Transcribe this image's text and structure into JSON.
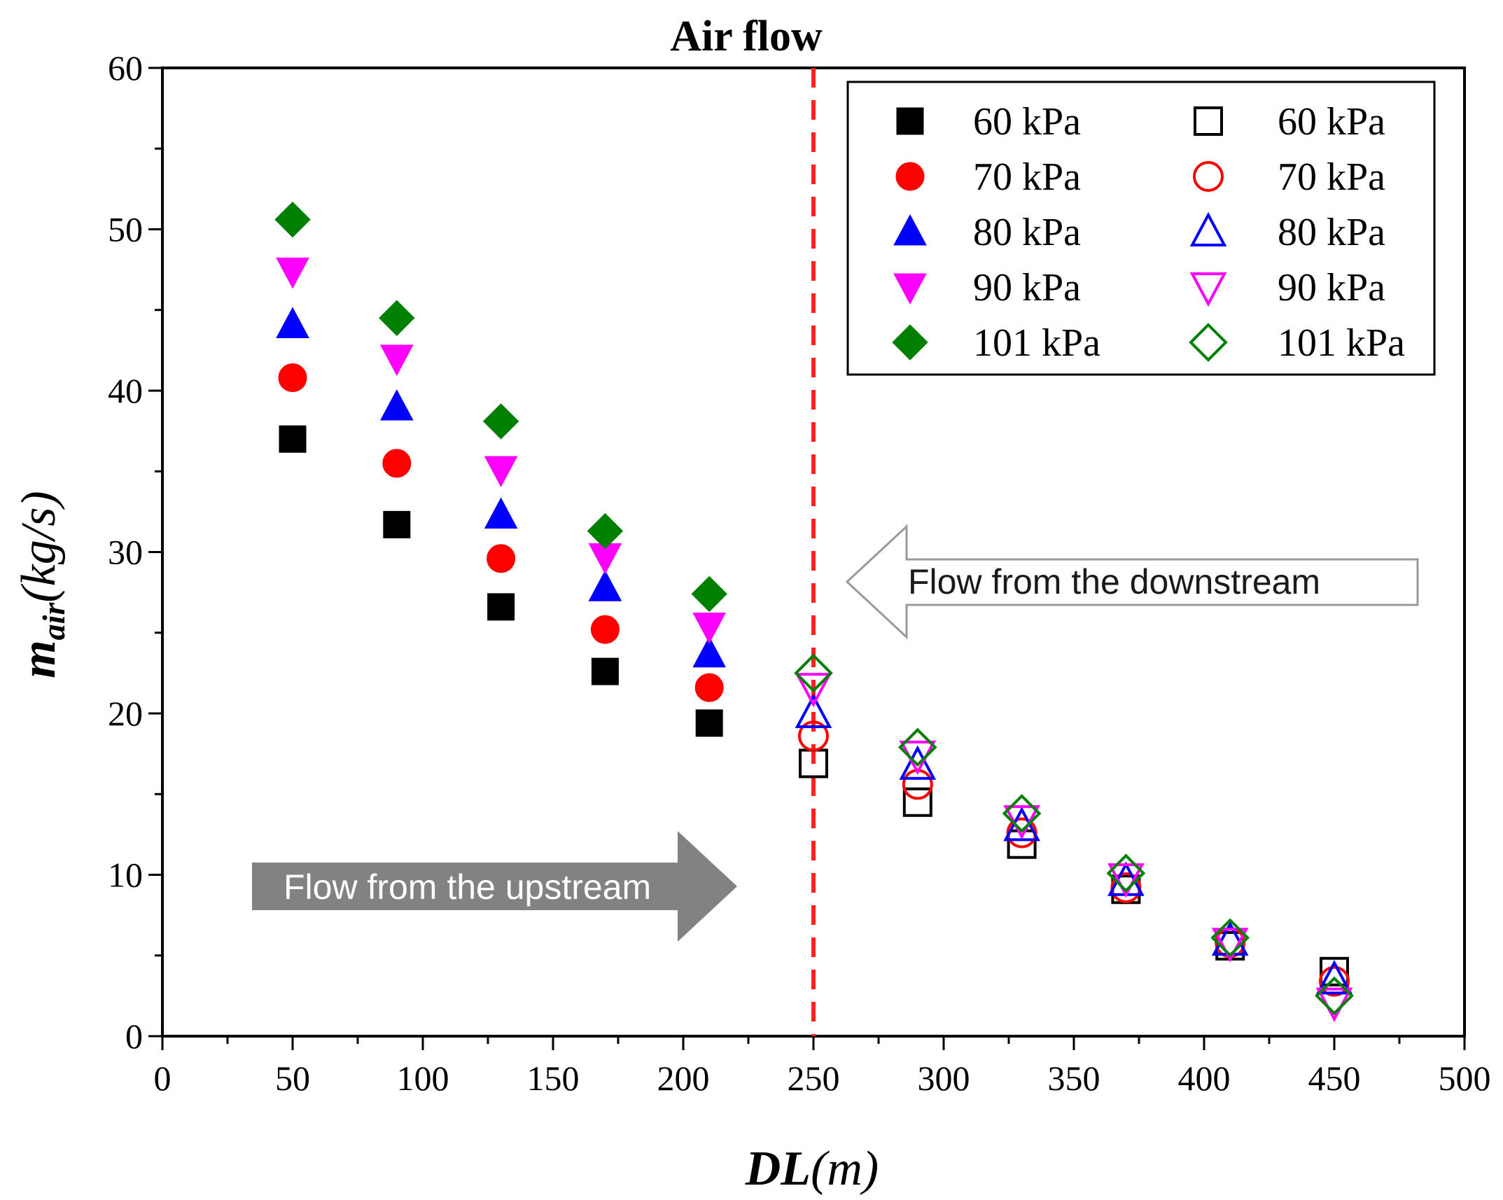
{
  "chart_data": {
    "type": "scatter",
    "title": "Air flow",
    "xlabel": {
      "main": "DL",
      "unit": "(m)"
    },
    "ylabel": {
      "main": "m",
      "sub": "air",
      "unit": "(kg/s)"
    },
    "xlim": [
      0,
      500
    ],
    "ylim": [
      0,
      60
    ],
    "xticks": [
      0,
      50,
      100,
      150,
      200,
      250,
      300,
      350,
      400,
      450,
      500
    ],
    "yticks": [
      0,
      10,
      20,
      30,
      40,
      50,
      60
    ],
    "grid": false,
    "legend_position": "top-right",
    "vline": {
      "x": 250,
      "color": "#ff2020",
      "style": "dashed"
    },
    "annotations": [
      {
        "text": "Flow from the upstream",
        "direction": "right",
        "style": "filled-gray-arrow"
      },
      {
        "text": "Flow from the downstream",
        "direction": "left",
        "style": "outline-arrow"
      }
    ],
    "series": [
      {
        "name": "60 kPa",
        "marker": "square",
        "filled": true,
        "color": "#000000",
        "x": [
          50,
          90,
          130,
          170,
          210
        ],
        "values": [
          37.0,
          31.7,
          26.6,
          22.6,
          19.4
        ]
      },
      {
        "name": "70 kPa",
        "marker": "circle",
        "filled": true,
        "color": "#ff0000",
        "x": [
          50,
          90,
          130,
          170,
          210
        ],
        "values": [
          40.8,
          35.5,
          29.6,
          25.2,
          21.6
        ]
      },
      {
        "name": "80 kPa",
        "marker": "triangle-up",
        "filled": true,
        "color": "#0000ff",
        "x": [
          50,
          90,
          130,
          170,
          210
        ],
        "values": [
          44.1,
          39.0,
          32.3,
          27.8,
          23.7
        ]
      },
      {
        "name": "90 kPa",
        "marker": "triangle-down",
        "filled": true,
        "color": "#ff00ff",
        "x": [
          50,
          90,
          130,
          170,
          210
        ],
        "values": [
          47.4,
          42.0,
          35.1,
          29.7,
          25.4
        ]
      },
      {
        "name": "101 kPa",
        "marker": "diamond",
        "filled": true,
        "color": "#008000",
        "x": [
          50,
          90,
          130,
          170,
          210
        ],
        "values": [
          50.6,
          44.5,
          38.1,
          31.3,
          27.4
        ]
      },
      {
        "name": "60 kPa",
        "marker": "square",
        "filled": false,
        "color": "#000000",
        "x": [
          250,
          290,
          330,
          370,
          410,
          450
        ],
        "values": [
          16.9,
          14.5,
          11.9,
          9.1,
          5.6,
          4.0
        ]
      },
      {
        "name": "70 kPa",
        "marker": "circle",
        "filled": false,
        "color": "#ff0000",
        "x": [
          250,
          290,
          330,
          370,
          410,
          450
        ],
        "values": [
          18.6,
          15.6,
          12.6,
          9.2,
          5.8,
          3.4
        ]
      },
      {
        "name": "80 kPa",
        "marker": "triangle-up",
        "filled": false,
        "color": "#0000ff",
        "x": [
          250,
          290,
          330,
          370,
          410,
          450
        ],
        "values": [
          20.0,
          16.8,
          13.0,
          9.6,
          5.9,
          3.5
        ]
      },
      {
        "name": "90 kPa",
        "marker": "triangle-down",
        "filled": false,
        "color": "#ff00ff",
        "x": [
          250,
          290,
          330,
          370,
          410,
          450
        ],
        "values": [
          21.6,
          17.4,
          13.4,
          9.8,
          5.8,
          2.1
        ]
      },
      {
        "name": "101 kPa",
        "marker": "diamond",
        "filled": false,
        "color": "#008000",
        "x": [
          250,
          290,
          330,
          370,
          410,
          450
        ],
        "values": [
          22.5,
          17.9,
          13.8,
          10.1,
          6.1,
          2.5
        ]
      }
    ]
  }
}
